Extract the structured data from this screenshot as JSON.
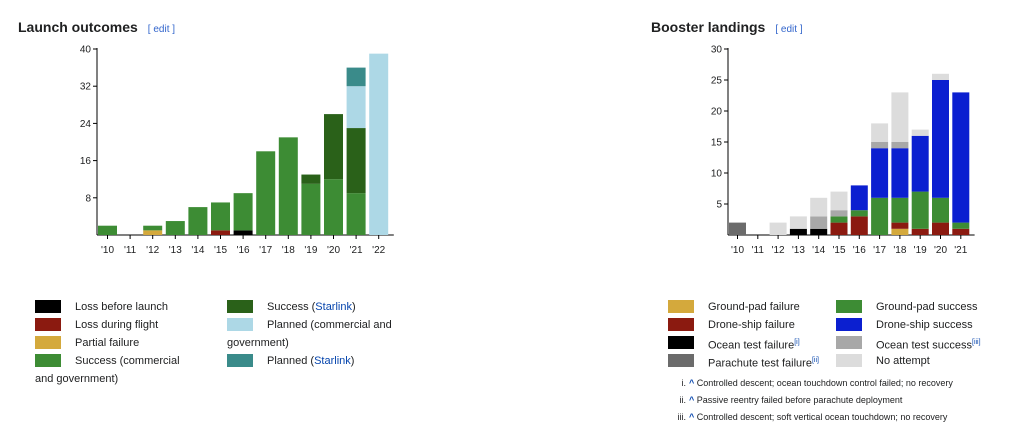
{
  "left": {
    "title": "Launch outcomes",
    "edit": "[ edit ]"
  },
  "right": {
    "title": "Booster landings",
    "edit": "[ edit ]"
  },
  "chart_data": [
    {
      "type": "bar",
      "stacked": true,
      "title": "Launch outcomes",
      "categories": [
        "'10",
        "'11",
        "'12",
        "'13",
        "'14",
        "'15",
        "'16",
        "'17",
        "'18",
        "'19",
        "'20",
        "'21",
        "'22"
      ],
      "ylim": [
        0,
        40
      ],
      "yticks": [
        8,
        16,
        24,
        32,
        40
      ],
      "colors": {
        "loss_before": "#000000",
        "loss_flight": "#8b1a10",
        "partial": "#d4a93c",
        "success": "#3d8c34",
        "starlink": "#2a6119",
        "planned": "#add8e6",
        "planned_starlink": "#3a8b8a"
      },
      "series": [
        {
          "key": "loss_before",
          "values": [
            0,
            0,
            0,
            0,
            0,
            0,
            1,
            0,
            0,
            0,
            0,
            0,
            0
          ]
        },
        {
          "key": "loss_flight",
          "values": [
            0,
            0,
            0,
            0,
            0,
            1,
            0,
            0,
            0,
            0,
            0,
            0,
            0
          ]
        },
        {
          "key": "partial",
          "values": [
            0,
            0,
            1,
            0,
            0,
            0,
            0,
            0,
            0,
            0,
            0,
            0,
            0
          ]
        },
        {
          "key": "success",
          "values": [
            2,
            0,
            1,
            3,
            6,
            6,
            8,
            18,
            21,
            11,
            12,
            9,
            0
          ]
        },
        {
          "key": "starlink",
          "values": [
            0,
            0,
            0,
            0,
            0,
            0,
            0,
            0,
            0,
            2,
            14,
            14,
            0
          ]
        },
        {
          "key": "planned",
          "values": [
            0,
            0,
            0,
            0,
            0,
            0,
            0,
            0,
            0,
            0,
            0,
            9,
            39
          ]
        },
        {
          "key": "planned_starlink",
          "values": [
            0,
            0,
            0,
            0,
            0,
            0,
            0,
            0,
            0,
            0,
            0,
            4,
            0
          ]
        }
      ],
      "legend": [
        {
          "key": "loss_before",
          "label": "Loss before launch"
        },
        {
          "key": "loss_flight",
          "label": "Loss during flight"
        },
        {
          "key": "partial",
          "label": "Partial failure"
        },
        {
          "key": "success",
          "label": "Success (commercial and government)"
        },
        {
          "key": "starlink",
          "label": "Success (",
          "link": "Starlink",
          "after": ")"
        },
        {
          "key": "planned",
          "label": "Planned (commercial and government)"
        },
        {
          "key": "planned_starlink",
          "label": "Planned (",
          "link": "Starlink",
          "after": ")"
        }
      ]
    },
    {
      "type": "bar",
      "stacked": true,
      "title": "Booster landings",
      "categories": [
        "'10",
        "'11",
        "'12",
        "'13",
        "'14",
        "'15",
        "'16",
        "'17",
        "'18",
        "'19",
        "'20",
        "'21"
      ],
      "ylim": [
        0,
        30
      ],
      "yticks": [
        5,
        10,
        15,
        20,
        25,
        30
      ],
      "colors": {
        "groundpad_fail": "#d4a93c",
        "drone_fail": "#8b1a10",
        "ocean_fail": "#000000",
        "parachute_fail": "#6b6b6b",
        "groundpad_success": "#3d8c34",
        "drone_success": "#0b1fd0",
        "ocean_success": "#a8a8a8",
        "no_attempt": "#dcdcdc"
      },
      "series": [
        {
          "key": "parachute_fail",
          "values": [
            2,
            0,
            0,
            0,
            0,
            0,
            0,
            0,
            0,
            0,
            0,
            0
          ]
        },
        {
          "key": "ocean_fail",
          "values": [
            0,
            0,
            0,
            1,
            1,
            0,
            0,
            0,
            0,
            0,
            0,
            0
          ]
        },
        {
          "key": "groundpad_fail",
          "values": [
            0,
            0,
            0,
            0,
            0,
            0,
            0,
            0,
            1,
            0,
            0,
            0
          ]
        },
        {
          "key": "drone_fail",
          "values": [
            0,
            0,
            0,
            0,
            0,
            2,
            3,
            0,
            1,
            1,
            2,
            1
          ]
        },
        {
          "key": "groundpad_success",
          "values": [
            0,
            0,
            0,
            0,
            0,
            1,
            1,
            6,
            4,
            6,
            4,
            1
          ]
        },
        {
          "key": "ocean_success",
          "values": [
            0,
            0,
            0,
            0,
            2,
            1,
            0,
            0,
            0,
            0,
            0,
            0
          ]
        },
        {
          "key": "drone_success",
          "values": [
            0,
            0,
            0,
            0,
            0,
            0,
            4,
            8,
            8,
            9,
            19,
            21
          ]
        },
        {
          "key": "ocean_success",
          "values": [
            0,
            0,
            0,
            0,
            0,
            0,
            0,
            1,
            1,
            0,
            0,
            0
          ]
        },
        {
          "key": "no_attempt",
          "values": [
            0,
            0,
            2,
            2,
            3,
            3,
            0,
            3,
            8,
            1,
            1,
            0
          ]
        }
      ],
      "legend": [
        {
          "key": "groundpad_fail",
          "label": "Ground-pad failure"
        },
        {
          "key": "drone_fail",
          "label": "Drone-ship failure"
        },
        {
          "key": "ocean_fail",
          "label": "Ocean test failure",
          "sup": "[i]"
        },
        {
          "key": "parachute_fail",
          "label": "Parachute test failure",
          "sup": "[ii]"
        },
        {
          "key": "groundpad_success",
          "label": "Ground-pad success"
        },
        {
          "key": "drone_success",
          "label": "Drone-ship success"
        },
        {
          "key": "ocean_success",
          "label": "Ocean test success",
          "sup": "[iii]"
        },
        {
          "key": "no_attempt",
          "label": "No attempt"
        }
      ],
      "notes": [
        {
          "num": "i.",
          "caret": "^",
          "text": "Controlled descent; ocean touchdown control failed; no recovery"
        },
        {
          "num": "ii.",
          "caret": "^",
          "text": "Passive reentry failed before parachute deployment"
        },
        {
          "num": "iii.",
          "caret": "^",
          "text": "Controlled descent; soft vertical ocean touchdown; no recovery"
        }
      ]
    }
  ]
}
